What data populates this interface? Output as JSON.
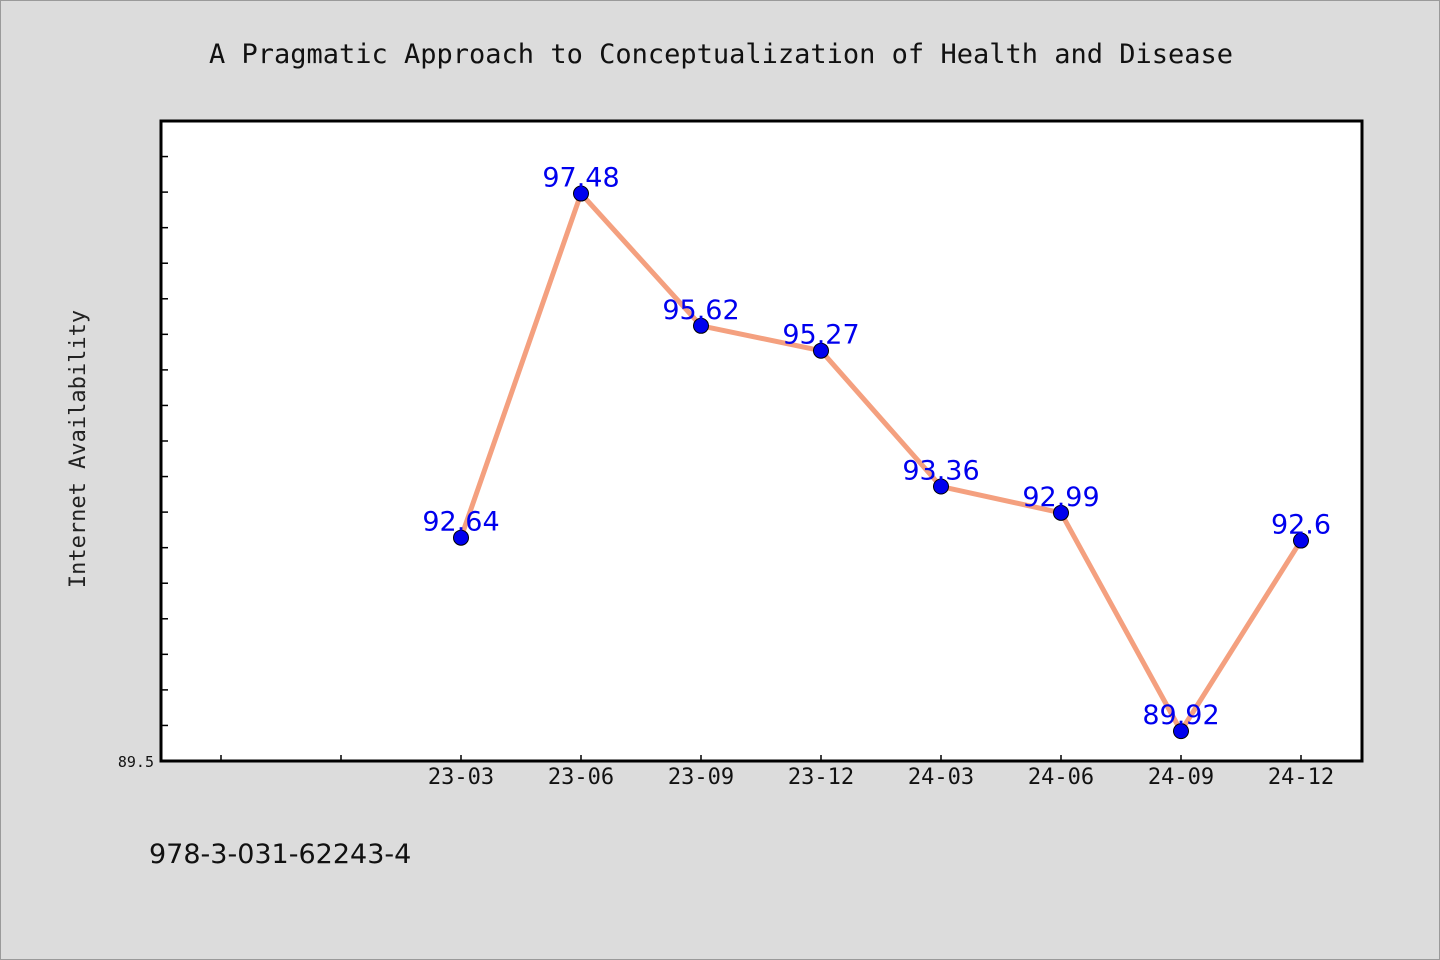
{
  "chart_data": {
    "type": "line",
    "title": "A Pragmatic Approach to Conceptualization of Health and Disease",
    "xlabel": "",
    "ylabel": "Internet Availability",
    "categories": [
      "23-03",
      "23-06",
      "23-09",
      "23-12",
      "24-03",
      "24-06",
      "24-09",
      "24-12"
    ],
    "values": [
      92.64,
      97.48,
      95.62,
      95.27,
      93.36,
      92.99,
      89.92,
      92.6
    ],
    "data_labels": [
      "92.64",
      "97.48",
      "95.62",
      "95.27",
      "93.36",
      "92.99",
      "89.92",
      "92.6"
    ],
    "y_tick_labels": [
      "89.5"
    ],
    "ylim": [
      89.5,
      98.5
    ],
    "grid": false,
    "colors": {
      "line": "#f4a07f",
      "marker": "#0000ee",
      "label": "#0000ee"
    }
  },
  "footer": {
    "isbn": "978-3-031-62243-4"
  }
}
